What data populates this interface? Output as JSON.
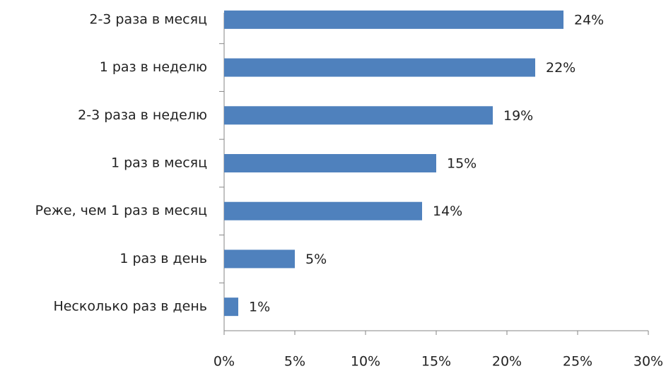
{
  "chart_data": {
    "type": "bar",
    "orientation": "horizontal",
    "categories": [
      "2-3 раза в месяц",
      "1 раз в неделю",
      "2-3 раза в неделю",
      "1 раз в месяц",
      "Реже, чем 1 раз в месяц",
      "1 раз в день",
      "Несколько раз в день"
    ],
    "values": [
      24,
      22,
      19,
      15,
      14,
      5,
      1
    ],
    "value_labels": [
      "24%",
      "22%",
      "19%",
      "15%",
      "14%",
      "5%",
      "1%"
    ],
    "color": "#4f81bd",
    "xlim": [
      0,
      30
    ],
    "xticks": [
      {
        "value": 0,
        "label": "0%"
      },
      {
        "value": 5,
        "label": "5%"
      },
      {
        "value": 10,
        "label": "10%"
      },
      {
        "value": 15,
        "label": "15%"
      },
      {
        "value": 20,
        "label": "20%"
      },
      {
        "value": 25,
        "label": "25%"
      },
      {
        "value": 30,
        "label": "30%"
      }
    ],
    "grid": false
  }
}
